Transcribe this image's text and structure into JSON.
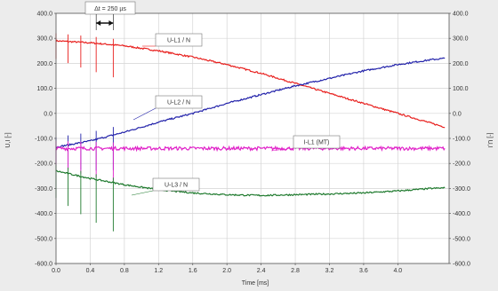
{
  "chart_data": {
    "type": "line",
    "xlabel": "Time [ms]",
    "ylabel_left": "U,I [-]",
    "ylabel_right": "[-] U,I",
    "xlim": [
      0.0,
      4.6
    ],
    "ylim": [
      -600.0,
      400.0
    ],
    "x_ticks": [
      "0.0",
      "0.4",
      "0.8",
      "1.2",
      "1.6",
      "2.0",
      "2.4",
      "2.8",
      "3.2",
      "3.6",
      "4.0"
    ],
    "x_tick_values": [
      0.0,
      0.4,
      0.8,
      1.2,
      1.6,
      2.0,
      2.4,
      2.8,
      3.2,
      3.6,
      4.0
    ],
    "y_ticks_left": [
      "400.0",
      "300.0",
      "200.0",
      "100.0",
      "0.0",
      "-100.0",
      "-200.0",
      "-300.0",
      "-400.0",
      "-500.0",
      "-600.0"
    ],
    "y_ticks_right": [
      "400.0",
      "300.0",
      "200.0",
      "100.0",
      "0.0",
      "-100.0",
      "-200.0",
      "-300.0",
      "-400.0",
      "-500.0",
      "-600.0"
    ],
    "y_tick_values": [
      400,
      300,
      200,
      100,
      0,
      -100,
      -200,
      -300,
      -400,
      -500,
      -600
    ],
    "grid": true,
    "spike_times": [
      0.0,
      0.14,
      0.29,
      0.47,
      0.67
    ],
    "series": [
      {
        "name": "U-L1 / N",
        "color": "#e8201e",
        "x": [
          0.0,
          0.4,
          0.8,
          1.2,
          1.6,
          2.0,
          2.4,
          2.8,
          3.2,
          3.6,
          4.0,
          4.4,
          4.55
        ],
        "values": [
          290,
          282,
          270,
          250,
          225,
          195,
          160,
          120,
          80,
          40,
          0,
          -40,
          -55
        ]
      },
      {
        "name": "U-L2 / N",
        "color": "#2222aa",
        "x": [
          0.0,
          0.4,
          0.8,
          1.2,
          1.6,
          2.0,
          2.4,
          2.8,
          3.2,
          3.6,
          4.0,
          4.4,
          4.55
        ],
        "values": [
          -135,
          -110,
          -75,
          -35,
          0,
          40,
          75,
          110,
          140,
          170,
          195,
          215,
          220
        ]
      },
      {
        "name": "I-L1 (MT)",
        "color": "#e020c8",
        "x": [
          0.0,
          0.4,
          0.8,
          1.2,
          1.6,
          2.0,
          2.4,
          2.8,
          3.2,
          3.6,
          4.0,
          4.4,
          4.55
        ],
        "values": [
          -140,
          -140,
          -140,
          -140,
          -140,
          -140,
          -140,
          -140,
          -140,
          -140,
          -140,
          -140,
          -140
        ]
      },
      {
        "name": "U-L3 / N",
        "color": "#1f7a2e",
        "x": [
          0.0,
          0.4,
          0.8,
          1.2,
          1.6,
          2.0,
          2.4,
          2.8,
          3.2,
          3.6,
          4.0,
          4.4,
          4.55
        ],
        "values": [
          -230,
          -260,
          -285,
          -305,
          -318,
          -325,
          -328,
          -325,
          -322,
          -318,
          -310,
          -300,
          -298
        ]
      }
    ],
    "annotations": [
      {
        "text": "U-L1 / N",
        "series": 0
      },
      {
        "text": "U-L2 / N",
        "series": 1
      },
      {
        "text": "I-L1 (MT)",
        "series": 2
      },
      {
        "text": "U-L3 / N",
        "series": 3
      },
      {
        "text": "Δt = 250 µs"
      }
    ]
  }
}
